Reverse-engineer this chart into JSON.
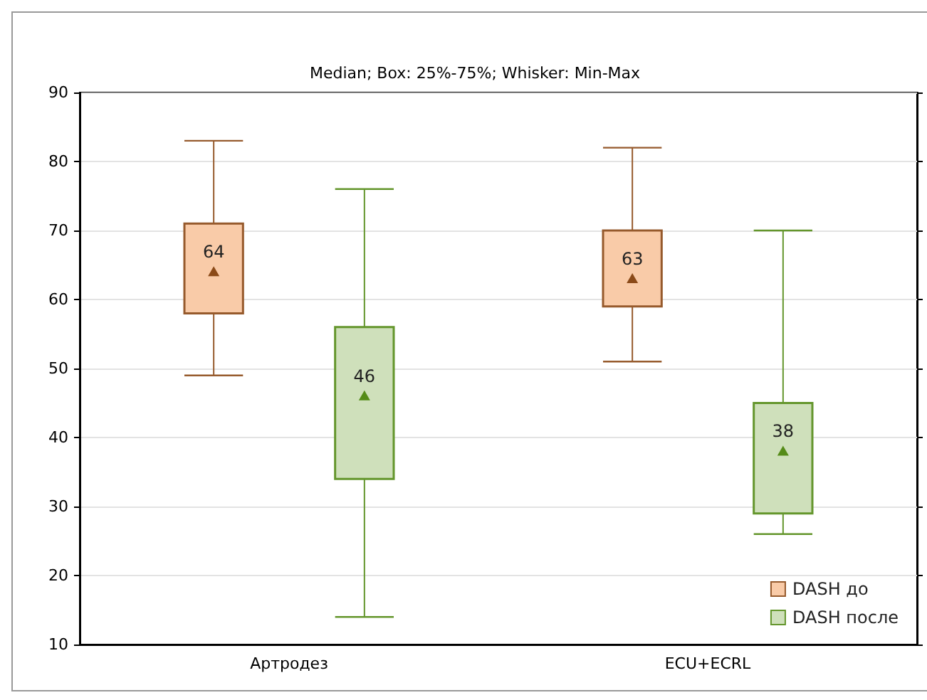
{
  "chart_data": {
    "type": "box",
    "title": "Median; Box: 25%-75%; Whisker: Min-Max",
    "categories": [
      "Артродез",
      "ECU+ECRL"
    ],
    "series": [
      {
        "name": "DASH до",
        "color": "#f9cba8",
        "value_labels": [
          "64",
          "63"
        ],
        "boxes": [
          {
            "low": 49,
            "q1": 58,
            "median": 64,
            "q3": 71,
            "high": 83
          },
          {
            "low": 51,
            "q1": 59,
            "median": 63,
            "q3": 70,
            "high": 82
          }
        ]
      },
      {
        "name": "DASH после",
        "color": "#cfe0bb",
        "value_labels": [
          "46",
          "38"
        ],
        "boxes": [
          {
            "low": 14,
            "q1": 34,
            "median": 46,
            "q3": 56,
            "high": 76
          },
          {
            "low": 26,
            "q1": 29,
            "median": 38,
            "q3": 45,
            "high": 70
          }
        ]
      }
    ],
    "ylim": [
      10,
      90
    ],
    "yticks": [
      10,
      20,
      30,
      40,
      50,
      60,
      70,
      80,
      90
    ],
    "grid": "y",
    "legend": "bottom right",
    "marker": "triangle"
  }
}
